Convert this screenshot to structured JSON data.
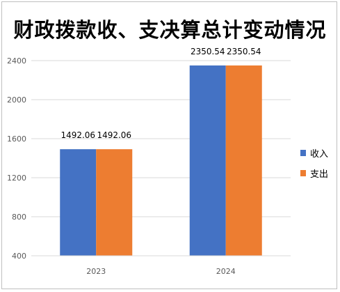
{
  "chart_data": {
    "type": "bar",
    "title": "财政拨款收、支决算总计变动情况",
    "categories": [
      "2023",
      "2024"
    ],
    "series": [
      {
        "name": "收入",
        "values": [
          1492.06,
          2350.54
        ],
        "labels": [
          "1492.06",
          "2350.54"
        ],
        "color": "#4472C4"
      },
      {
        "name": "支出",
        "values": [
          1492.06,
          2350.54
        ],
        "labels": [
          "1492.06",
          "2350.54"
        ],
        "color": "#ED7D31"
      }
    ],
    "yticks": [
      "400",
      "800",
      "1200",
      "1600",
      "2000",
      "2400"
    ],
    "ylim": [
      400,
      2400
    ],
    "grid": true,
    "legend_position": "right",
    "gridline_color": "#d9d9d9"
  }
}
